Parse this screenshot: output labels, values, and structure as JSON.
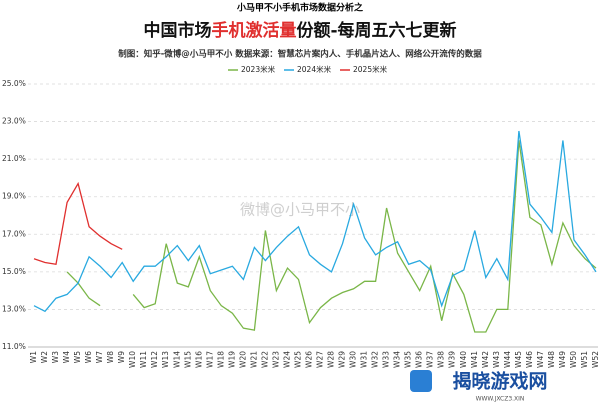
{
  "chart_data": {
    "type": "line",
    "supertitle": "小马甲不小手机市场数据分析之",
    "title_parts": [
      "中国市场",
      "手机激活量",
      "份额-每周五六七更新"
    ],
    "subtitle": "制图：知乎-微博@小马甲不小   数据来源：智慧芯片案内人、手机晶片达人、网络公开流传的数据",
    "watermark": "微博@小马甲不小",
    "logo": "揭晓游戏网",
    "logo_url": "WWW.JXCZ3.XIN",
    "categories": [
      "W1",
      "W2",
      "W3",
      "W4",
      "W5",
      "W6",
      "W7",
      "W8",
      "W9",
      "W10",
      "W11",
      "W12",
      "W13",
      "W14",
      "W15",
      "W16",
      "W17",
      "W18",
      "W19",
      "W20",
      "W21",
      "W22",
      "W23",
      "W24",
      "W25",
      "W26",
      "W27",
      "W28",
      "W29",
      "W30",
      "W31",
      "W32",
      "W33",
      "W34",
      "W35",
      "W36",
      "W37",
      "W38",
      "W39",
      "W40",
      "W41",
      "W42",
      "W43",
      "W44",
      "W45",
      "W46",
      "W47",
      "W48",
      "W49",
      "W50",
      "W51",
      "W52"
    ],
    "series": [
      {
        "name": "2023米米",
        "color": "#7ab648",
        "values": [
          null,
          null,
          null,
          15.0,
          14.4,
          13.6,
          13.2,
          null,
          null,
          13.8,
          13.1,
          13.3,
          16.5,
          14.4,
          14.2,
          15.8,
          14.0,
          13.2,
          12.8,
          12.0,
          11.9,
          17.2,
          14.0,
          15.2,
          14.6,
          12.3,
          13.1,
          13.6,
          13.9,
          14.1,
          14.5,
          14.5,
          18.4,
          16.0,
          15.0,
          14.0,
          15.3,
          12.4,
          14.9,
          13.8,
          11.8,
          11.8,
          13.0,
          13.0,
          22.0,
          17.9,
          17.5,
          15.4,
          17.6,
          16.4,
          15.7,
          15.2
        ]
      },
      {
        "name": "2024米米",
        "color": "#29a9e0",
        "values": [
          13.2,
          12.9,
          13.6,
          13.8,
          14.4,
          15.8,
          15.3,
          14.7,
          15.5,
          14.5,
          15.3,
          15.3,
          15.8,
          16.4,
          15.6,
          16.4,
          14.9,
          15.1,
          15.3,
          14.6,
          16.3,
          15.6,
          16.3,
          16.9,
          17.4,
          15.9,
          15.4,
          15.0,
          16.5,
          18.6,
          16.8,
          15.9,
          16.3,
          16.6,
          15.4,
          15.6,
          15.1,
          13.2,
          14.8,
          15.1,
          17.2,
          14.7,
          15.7,
          14.6,
          22.5,
          18.6,
          17.9,
          17.1,
          22.0,
          16.7,
          15.9,
          15.0
        ]
      },
      {
        "name": "2025米米",
        "color": "#e0302f",
        "values": [
          15.7,
          15.5,
          15.4,
          18.7,
          19.7,
          17.4,
          16.9,
          16.5,
          16.2,
          null,
          null,
          null,
          null,
          null,
          null,
          null,
          null,
          null,
          null,
          null,
          null,
          null,
          null,
          null,
          null,
          null,
          null,
          null,
          null,
          null,
          null,
          null,
          null,
          null,
          null,
          null,
          null,
          null,
          null,
          null,
          null,
          null,
          null,
          null,
          null,
          null,
          null,
          null,
          null,
          null,
          null,
          null
        ]
      }
    ],
    "ylim": [
      11,
      25
    ],
    "yticks": [
      {
        "value": 11,
        "label": "11.0%"
      },
      {
        "value": 13,
        "label": "13.0%"
      },
      {
        "value": 15,
        "label": "15.0%"
      },
      {
        "value": 17,
        "label": "17.0%"
      },
      {
        "value": 19,
        "label": "19.0%"
      },
      {
        "value": 21,
        "label": "21.0%"
      },
      {
        "value": 23,
        "label": "23.0%"
      },
      {
        "value": 25,
        "label": "25.0%"
      }
    ],
    "grid": true,
    "legend": "top"
  }
}
